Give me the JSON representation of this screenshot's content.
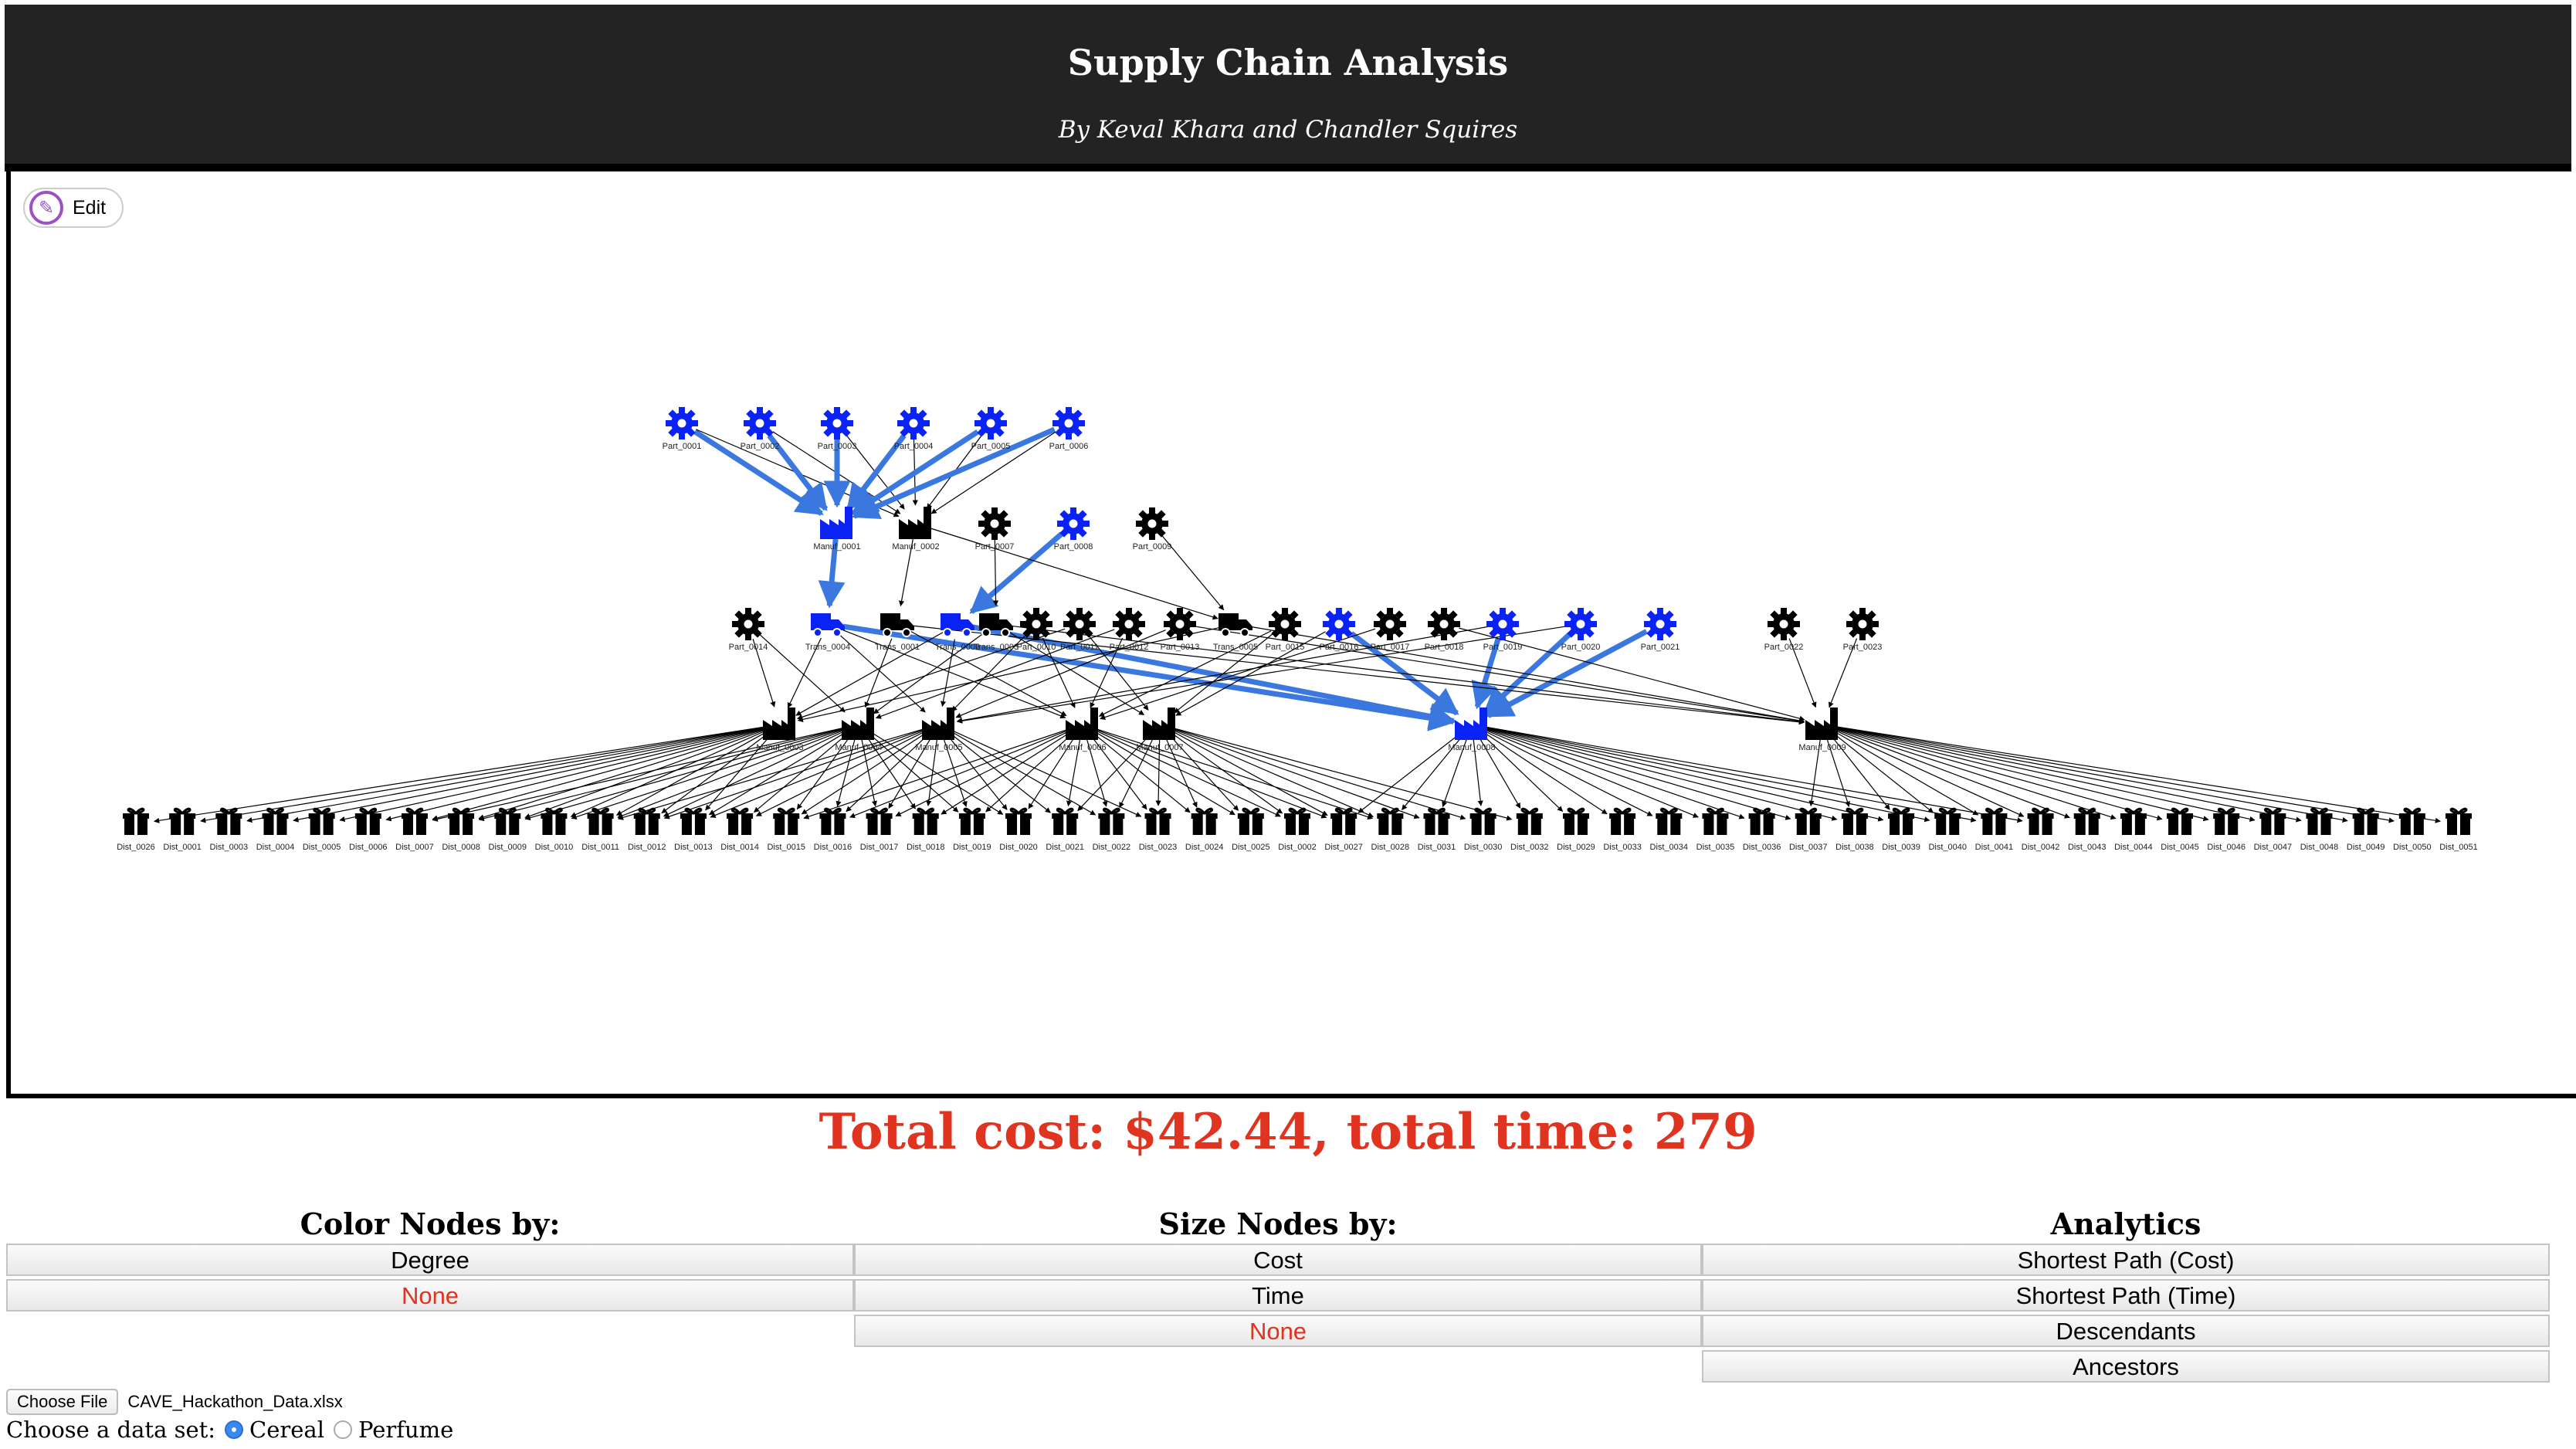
{
  "header": {
    "title": "Supply Chain Analysis",
    "subtitle": "By Keval Khara and Chandler Squires"
  },
  "graph": {
    "edit_label": "Edit",
    "highlight_color": "#0b22f5",
    "edge_highlight_color": "#3a78e0",
    "node_color": "#000000",
    "parts_top": [
      {
        "id": "Part_0001",
        "hl": true
      },
      {
        "id": "Part_0002",
        "hl": true
      },
      {
        "id": "Part_0003",
        "hl": true
      },
      {
        "id": "Part_0004",
        "hl": true
      },
      {
        "id": "Part_0005",
        "hl": true
      },
      {
        "id": "Part_0006",
        "hl": true
      }
    ],
    "row2": [
      {
        "id": "Manuf_0001",
        "type": "manuf",
        "hl": true
      },
      {
        "id": "Manuf_0002",
        "type": "manuf",
        "hl": false
      },
      {
        "id": "Part_0007",
        "type": "part",
        "hl": false
      },
      {
        "id": "Part_0008",
        "type": "part",
        "hl": true
      },
      {
        "id": "Part_0009",
        "type": "part",
        "hl": false
      }
    ],
    "row3": [
      {
        "id": "Part_0014",
        "type": "part",
        "hl": false
      },
      {
        "id": "Trans_0004",
        "type": "trans",
        "hl": true
      },
      {
        "id": "Trans_0001",
        "type": "trans",
        "hl": false
      },
      {
        "id": "Trans_0002",
        "type": "trans",
        "hl": true
      },
      {
        "id": "Trans_0003",
        "type": "trans",
        "hl": false
      },
      {
        "id": "Part_0010",
        "type": "part",
        "hl": false
      },
      {
        "id": "Part_0011",
        "type": "part",
        "hl": false
      },
      {
        "id": "Part_0012",
        "type": "part",
        "hl": false
      },
      {
        "id": "Part_0013",
        "type": "part",
        "hl": false
      },
      {
        "id": "Trans_0005",
        "type": "trans",
        "hl": false
      },
      {
        "id": "Part_0015",
        "type": "part",
        "hl": false
      },
      {
        "id": "Part_0016",
        "type": "part",
        "hl": true
      },
      {
        "id": "Part_0017",
        "type": "part",
        "hl": false
      },
      {
        "id": "Part_0018",
        "type": "part",
        "hl": false
      },
      {
        "id": "Part_0019",
        "type": "part",
        "hl": true
      },
      {
        "id": "Part_0020",
        "type": "part",
        "hl": true
      },
      {
        "id": "Part_0021",
        "type": "part",
        "hl": true
      },
      {
        "id": "Part_0022",
        "type": "part",
        "hl": false
      },
      {
        "id": "Part_0023",
        "type": "part",
        "hl": false
      }
    ],
    "row4": [
      {
        "id": "Manuf_0003",
        "hl": false
      },
      {
        "id": "Manuf_0004",
        "hl": false
      },
      {
        "id": "Manuf_0005",
        "hl": false
      },
      {
        "id": "Manuf_0006",
        "hl": false
      },
      {
        "id": "Manuf_0007",
        "hl": false
      },
      {
        "id": "Manuf_0008",
        "hl": true
      },
      {
        "id": "Manuf_0009",
        "hl": false
      }
    ],
    "dists": [
      "Dist_0026",
      "Dist_0001",
      "Dist_0003",
      "Dist_0004",
      "Dist_0005",
      "Dist_0006",
      "Dist_0007",
      "Dist_0008",
      "Dist_0009",
      "Dist_0010",
      "Dist_0011",
      "Dist_0012",
      "Dist_0013",
      "Dist_0014",
      "Dist_0015",
      "Dist_0016",
      "Dist_0017",
      "Dist_0018",
      "Dist_0019",
      "Dist_0020",
      "Dist_0021",
      "Dist_0022",
      "Dist_0023",
      "Dist_0024",
      "Dist_0025",
      "Dist_0002",
      "Dist_0027",
      "Dist_0028",
      "Dist_0031",
      "Dist_0030",
      "Dist_0032",
      "Dist_0029",
      "Dist_0033",
      "Dist_0034",
      "Dist_0035",
      "Dist_0036",
      "Dist_0037",
      "Dist_0038",
      "Dist_0039",
      "Dist_0040",
      "Dist_0041",
      "Dist_0042",
      "Dist_0043",
      "Dist_0044",
      "Dist_0045",
      "Dist_0046",
      "Dist_0047",
      "Dist_0048",
      "Dist_0049",
      "Dist_0050",
      "Dist_0051"
    ]
  },
  "summary": {
    "text": "Total cost: $42.44, total time: 279",
    "color": "#e03320"
  },
  "controls": {
    "color_nodes": {
      "heading": "Color Nodes by:",
      "options": [
        "Degree",
        "None"
      ],
      "selected": "None"
    },
    "size_nodes": {
      "heading": "Size Nodes by:",
      "options": [
        "Cost",
        "Time",
        "None"
      ],
      "selected": "None"
    },
    "analytics": {
      "heading": "Analytics",
      "options": [
        "Shortest Path (Cost)",
        "Shortest Path (Time)",
        "Descendants",
        "Ancestors"
      ],
      "selected": ""
    }
  },
  "file": {
    "button_label": "Choose File",
    "filename": "CAVE_Hackathon_Data.xlsx"
  },
  "dataset": {
    "label": "Choose a data set:",
    "options": [
      "Cereal",
      "Perfume"
    ],
    "selected": "Cereal"
  }
}
